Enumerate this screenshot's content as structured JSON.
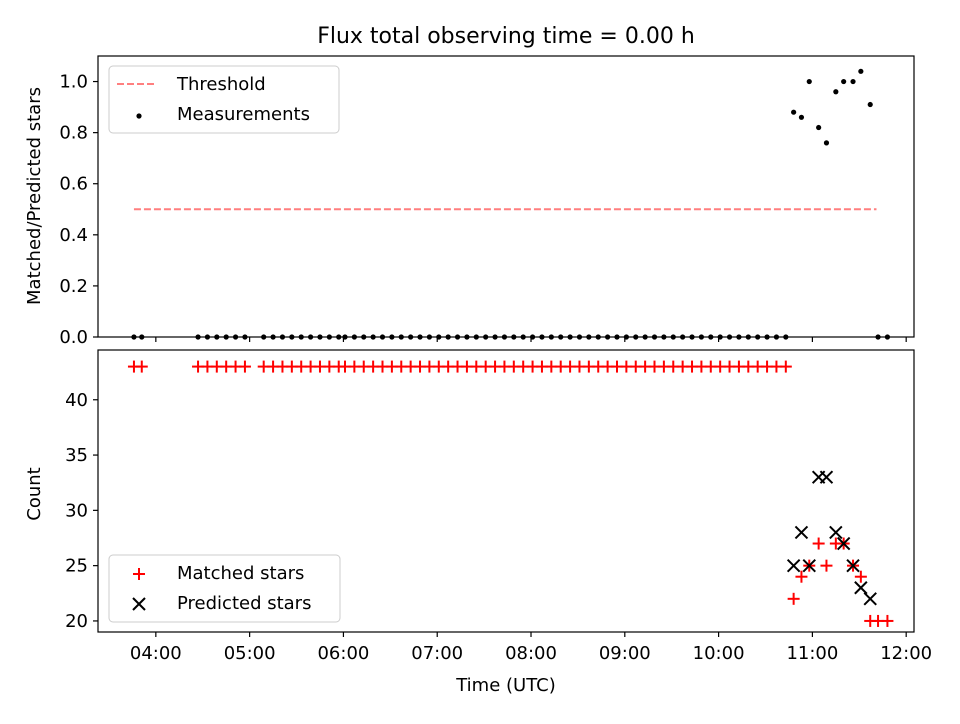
{
  "title": "Flux total observing time = 0.00 h",
  "xlabel": "Time (UTC)",
  "x_ticks": [
    "04:00",
    "05:00",
    "06:00",
    "07:00",
    "08:00",
    "09:00",
    "10:00",
    "11:00",
    "12:00"
  ],
  "colors": {
    "threshold": "#ff7f7f",
    "measurements": "#000000",
    "matched": "#ff0000",
    "predicted": "#000000"
  },
  "chart_data": [
    {
      "type": "scatter",
      "ylabel": "Matched/Predicted stars",
      "ylim": [
        0,
        1.1
      ],
      "yticks": [
        "0.0",
        "0.2",
        "0.4",
        "0.6",
        "0.8",
        "1.0"
      ],
      "legend_position": "upper-left",
      "threshold": {
        "name": "Threshold",
        "value": 0.5,
        "x_range": [
          "03:46",
          "11:41"
        ],
        "style": "dashed"
      },
      "measurements": {
        "name": "Measurements",
        "x": [
          "03:46",
          "03:51",
          "04:27",
          "04:33",
          "04:39",
          "04:45",
          "04:51",
          "04:57",
          "05:09",
          "05:15",
          "05:21",
          "05:27",
          "05:33",
          "05:39",
          "05:45",
          "05:51",
          "05:57",
          "06:01",
          "06:07",
          "06:13",
          "06:19",
          "06:25",
          "06:31",
          "06:37",
          "06:43",
          "06:49",
          "06:55",
          "07:01",
          "07:07",
          "07:13",
          "07:19",
          "07:25",
          "07:31",
          "07:37",
          "07:43",
          "07:49",
          "07:55",
          "08:01",
          "08:07",
          "08:13",
          "08:19",
          "08:25",
          "08:31",
          "08:37",
          "08:43",
          "08:49",
          "08:55",
          "09:01",
          "09:07",
          "09:13",
          "09:19",
          "09:25",
          "09:31",
          "09:37",
          "09:43",
          "09:49",
          "09:55",
          "10:01",
          "10:07",
          "10:13",
          "10:19",
          "10:25",
          "10:31",
          "10:37",
          "10:43",
          "10:48",
          "10:53",
          "10:58",
          "11:04",
          "11:09",
          "11:15",
          "11:20",
          "11:26",
          "11:31",
          "11:37",
          "11:42",
          "11:48"
        ],
        "y": [
          0,
          0,
          0,
          0,
          0,
          0,
          0,
          0,
          0,
          0,
          0,
          0,
          0,
          0,
          0,
          0,
          0,
          0,
          0,
          0,
          0,
          0,
          0,
          0,
          0,
          0,
          0,
          0,
          0,
          0,
          0,
          0,
          0,
          0,
          0,
          0,
          0,
          0,
          0,
          0,
          0,
          0,
          0,
          0,
          0,
          0,
          0,
          0,
          0,
          0,
          0,
          0,
          0,
          0,
          0,
          0,
          0,
          0,
          0,
          0,
          0,
          0,
          0,
          0,
          0,
          0.88,
          0.86,
          1.0,
          0.82,
          0.76,
          0.96,
          1.0,
          1.0,
          1.04,
          0.91,
          0,
          0
        ]
      }
    },
    {
      "type": "scatter",
      "ylabel": "Count",
      "ylim": [
        19,
        44.5
      ],
      "yticks": [
        "20",
        "25",
        "30",
        "35",
        "40"
      ],
      "legend_position": "lower-left",
      "series": [
        {
          "name": "Matched stars",
          "marker": "plus",
          "x": [
            "03:46",
            "03:51",
            "04:27",
            "04:33",
            "04:39",
            "04:45",
            "04:51",
            "04:57",
            "05:09",
            "05:15",
            "05:21",
            "05:27",
            "05:33",
            "05:39",
            "05:45",
            "05:51",
            "05:57",
            "06:01",
            "06:07",
            "06:13",
            "06:19",
            "06:25",
            "06:31",
            "06:37",
            "06:43",
            "06:49",
            "06:55",
            "07:01",
            "07:07",
            "07:13",
            "07:19",
            "07:25",
            "07:31",
            "07:37",
            "07:43",
            "07:49",
            "07:55",
            "08:01",
            "08:07",
            "08:13",
            "08:19",
            "08:25",
            "08:31",
            "08:37",
            "08:43",
            "08:49",
            "08:55",
            "09:01",
            "09:07",
            "09:13",
            "09:19",
            "09:25",
            "09:31",
            "09:37",
            "09:43",
            "09:49",
            "09:55",
            "10:01",
            "10:07",
            "10:13",
            "10:19",
            "10:25",
            "10:31",
            "10:37",
            "10:43",
            "10:48",
            "10:53",
            "10:58",
            "11:04",
            "11:09",
            "11:15",
            "11:20",
            "11:26",
            "11:31",
            "11:37",
            "11:42",
            "11:48"
          ],
          "y": [
            43,
            43,
            43,
            43,
            43,
            43,
            43,
            43,
            43,
            43,
            43,
            43,
            43,
            43,
            43,
            43,
            43,
            43,
            43,
            43,
            43,
            43,
            43,
            43,
            43,
            43,
            43,
            43,
            43,
            43,
            43,
            43,
            43,
            43,
            43,
            43,
            43,
            43,
            43,
            43,
            43,
            43,
            43,
            43,
            43,
            43,
            43,
            43,
            43,
            43,
            43,
            43,
            43,
            43,
            43,
            43,
            43,
            43,
            43,
            43,
            43,
            43,
            43,
            43,
            43,
            22,
            24,
            25,
            27,
            25,
            27,
            27,
            25,
            24,
            20,
            20,
            20
          ]
        },
        {
          "name": "Predicted stars",
          "marker": "x",
          "x": [
            "10:48",
            "10:53",
            "10:58",
            "11:04",
            "11:09",
            "11:15",
            "11:20",
            "11:26",
            "11:31",
            "11:37"
          ],
          "y": [
            25,
            28,
            25,
            33,
            33,
            28,
            27,
            25,
            23,
            22
          ]
        }
      ]
    }
  ]
}
